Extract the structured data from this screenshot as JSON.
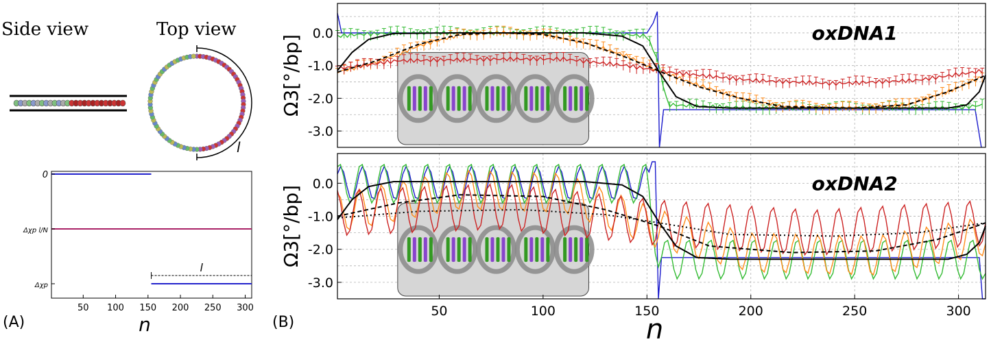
{
  "panel_a": {
    "label": "(A)",
    "side_view_title": "Side view",
    "top_view_title": "Top view",
    "arc_label": "l"
  },
  "panel_b": {
    "label": "(B)"
  },
  "chart_data": [
    {
      "panel": "A-bottom",
      "type": "line",
      "xlabel": "n",
      "xticks": [
        50,
        100,
        150,
        200,
        250,
        300
      ],
      "xlim": [
        1,
        310
      ],
      "ytick_labels": [
        "0",
        "Δχp l/N",
        "Δχp"
      ],
      "bracket_label": "l",
      "series": [
        {
          "color": "#2222cc",
          "segments": [
            {
              "x": [
                1,
                155
              ],
              "y": "0"
            },
            {
              "x": [
                155,
                310
              ],
              "y": "Δχp"
            }
          ]
        },
        {
          "color": "#aa2266",
          "segments": [
            {
              "x": [
                1,
                310
              ],
              "y": "Δχp l/N"
            }
          ]
        }
      ]
    },
    {
      "panel": "B-top",
      "type": "line",
      "title": "oxDNA1",
      "ylabel": "Ω3[°/bp]",
      "ylim": [
        -3.5,
        0.9
      ],
      "yticks": [
        0.0,
        -1.0,
        -2.0,
        -3.0
      ],
      "ytick_labels": [
        "0.0",
        "-1.0",
        "-2.0",
        "-3.0"
      ],
      "xlim": [
        1,
        313
      ],
      "grid": true,
      "series": [
        {
          "color": "#1a1acc",
          "style": "step",
          "points": [
            [
              1,
              0.6
            ],
            [
              3,
              0.0
            ],
            [
              150,
              0.0
            ],
            [
              153,
              0.3
            ],
            [
              155,
              0.65
            ],
            [
              156,
              -3.55
            ],
            [
              158,
              -2.35
            ],
            [
              308,
              -2.35
            ],
            [
              311,
              -3.55
            ]
          ]
        },
        {
          "color": "#33bb33",
          "style": "errorbar",
          "points": [
            [
              1,
              -0.1
            ],
            [
              10,
              -0.05
            ],
            [
              30,
              0.0
            ],
            [
              80,
              0.0
            ],
            [
              130,
              0.0
            ],
            [
              150,
              -0.1
            ],
            [
              155,
              -0.8
            ],
            [
              160,
              -2.2
            ],
            [
              200,
              -2.3
            ],
            [
              250,
              -2.3
            ],
            [
              300,
              -2.3
            ],
            [
              312,
              -2.2
            ]
          ]
        },
        {
          "color": "#ff8c1a",
          "style": "errorbar",
          "points": [
            [
              1,
              -1.2
            ],
            [
              20,
              -0.9
            ],
            [
              40,
              -0.4
            ],
            [
              60,
              -0.05
            ],
            [
              80,
              -0.0
            ],
            [
              100,
              -0.05
            ],
            [
              120,
              -0.3
            ],
            [
              140,
              -0.7
            ],
            [
              157,
              -1.2
            ],
            [
              175,
              -1.6
            ],
            [
              195,
              -2.0
            ],
            [
              215,
              -2.25
            ],
            [
              250,
              -2.3
            ],
            [
              275,
              -2.2
            ],
            [
              295,
              -1.8
            ],
            [
              313,
              -1.3
            ]
          ]
        },
        {
          "color": "#cc2222",
          "style": "errorbar",
          "points": [
            [
              1,
              -1.1
            ],
            [
              30,
              -0.85
            ],
            [
              80,
              -0.8
            ],
            [
              110,
              -0.8
            ],
            [
              140,
              -1.0
            ],
            [
              160,
              -1.2
            ],
            [
              200,
              -1.45
            ],
            [
              240,
              -1.55
            ],
            [
              280,
              -1.45
            ],
            [
              313,
              -1.15
            ]
          ]
        },
        {
          "color": "#000000",
          "style": "solid",
          "points": [
            [
              1,
              -1.15
            ],
            [
              8,
              -0.6
            ],
            [
              16,
              -0.2
            ],
            [
              28,
              -0.02
            ],
            [
              60,
              0.0
            ],
            [
              120,
              0.0
            ],
            [
              138,
              -0.1
            ],
            [
              148,
              -0.4
            ],
            [
              156,
              -1.2
            ],
            [
              164,
              -1.95
            ],
            [
              174,
              -2.25
            ],
            [
              190,
              -2.3
            ],
            [
              295,
              -2.3
            ],
            [
              304,
              -2.2
            ],
            [
              310,
              -1.8
            ],
            [
              313,
              -1.3
            ]
          ]
        },
        {
          "color": "#000000",
          "style": "dashed",
          "points": [
            [
              1,
              -1.2
            ],
            [
              20,
              -0.85
            ],
            [
              40,
              -0.35
            ],
            [
              60,
              -0.05
            ],
            [
              80,
              0.0
            ],
            [
              100,
              -0.05
            ],
            [
              120,
              -0.3
            ],
            [
              140,
              -0.75
            ],
            [
              157,
              -1.2
            ],
            [
              175,
              -1.65
            ],
            [
              195,
              -2.0
            ],
            [
              215,
              -2.25
            ],
            [
              250,
              -2.3
            ],
            [
              275,
              -2.2
            ],
            [
              295,
              -1.8
            ],
            [
              313,
              -1.3
            ]
          ]
        }
      ]
    },
    {
      "panel": "B-bottom",
      "type": "line",
      "title": "oxDNA2",
      "ylabel": "Ω3[°/bp]",
      "xlabel": "n",
      "ylim": [
        -3.5,
        0.9
      ],
      "yticks": [
        0.0,
        -1.0,
        -2.0,
        -3.0
      ],
      "ytick_labels": [
        "0.0",
        "-1.0",
        "-2.0",
        "-3.0"
      ],
      "xlim": [
        1,
        313
      ],
      "xticks": [
        50,
        100,
        150,
        200,
        250,
        300
      ],
      "grid": true,
      "oscillation_period_bp": 10.5,
      "series": [
        {
          "color": "#1a1acc",
          "style": "osc",
          "center": [
            [
              1,
              0.0
            ],
            [
              150,
              0.0
            ]
          ],
          "amplitude": 0.5,
          "tail": [
            [
              156,
              -2.25
            ],
            [
              310,
              -2.25
            ]
          ]
        },
        {
          "color": "#33bb33",
          "style": "osc",
          "center": [
            [
              1,
              0.0
            ],
            [
              150,
              0.0
            ],
            [
              156,
              -2.3
            ],
            [
              313,
              -2.3
            ]
          ],
          "amplitude": 0.6
        },
        {
          "color": "#ff8c1a",
          "style": "osc",
          "center": [
            [
              1,
              -0.9
            ],
            [
              60,
              -0.2
            ],
            [
              110,
              -0.3
            ],
            [
              156,
              -1.4
            ],
            [
              200,
              -2.1
            ],
            [
              260,
              -2.2
            ],
            [
              313,
              -1.6
            ]
          ],
          "amplitude": 0.6
        },
        {
          "color": "#cc2222",
          "style": "osc",
          "center": [
            [
              1,
              -0.9
            ],
            [
              80,
              -0.7
            ],
            [
              156,
              -1.2
            ],
            [
              230,
              -1.5
            ],
            [
              313,
              -1.2
            ]
          ],
          "amplitude": 0.7
        },
        {
          "color": "#000000",
          "style": "solid",
          "points": [
            [
              1,
              -1.1
            ],
            [
              8,
              -0.5
            ],
            [
              16,
              -0.1
            ],
            [
              28,
              0.05
            ],
            [
              60,
              0.05
            ],
            [
              120,
              0.05
            ],
            [
              138,
              -0.05
            ],
            [
              148,
              -0.4
            ],
            [
              156,
              -1.2
            ],
            [
              164,
              -1.9
            ],
            [
              174,
              -2.25
            ],
            [
              190,
              -2.3
            ],
            [
              295,
              -2.3
            ],
            [
              304,
              -2.15
            ],
            [
              310,
              -1.8
            ],
            [
              313,
              -1.3
            ]
          ]
        },
        {
          "color": "#000000",
          "style": "dashed",
          "points": [
            [
              1,
              -1.0
            ],
            [
              30,
              -0.6
            ],
            [
              60,
              -0.35
            ],
            [
              100,
              -0.4
            ],
            [
              130,
              -0.8
            ],
            [
              156,
              -1.3
            ],
            [
              180,
              -1.9
            ],
            [
              220,
              -2.1
            ],
            [
              260,
              -2.05
            ],
            [
              290,
              -1.7
            ],
            [
              313,
              -1.2
            ]
          ]
        },
        {
          "color": "#000000",
          "style": "dotted",
          "points": [
            [
              1,
              -1.05
            ],
            [
              40,
              -0.85
            ],
            [
              90,
              -0.8
            ],
            [
              130,
              -0.95
            ],
            [
              156,
              -1.2
            ],
            [
              190,
              -1.55
            ],
            [
              240,
              -1.6
            ],
            [
              280,
              -1.5
            ],
            [
              313,
              -1.2
            ]
          ]
        }
      ]
    }
  ],
  "icons": {
    "dna_inset": "dna-helix-illustration",
    "side_view": "dna-side-view-illustration",
    "top_view": "dna-circle-illustration"
  }
}
